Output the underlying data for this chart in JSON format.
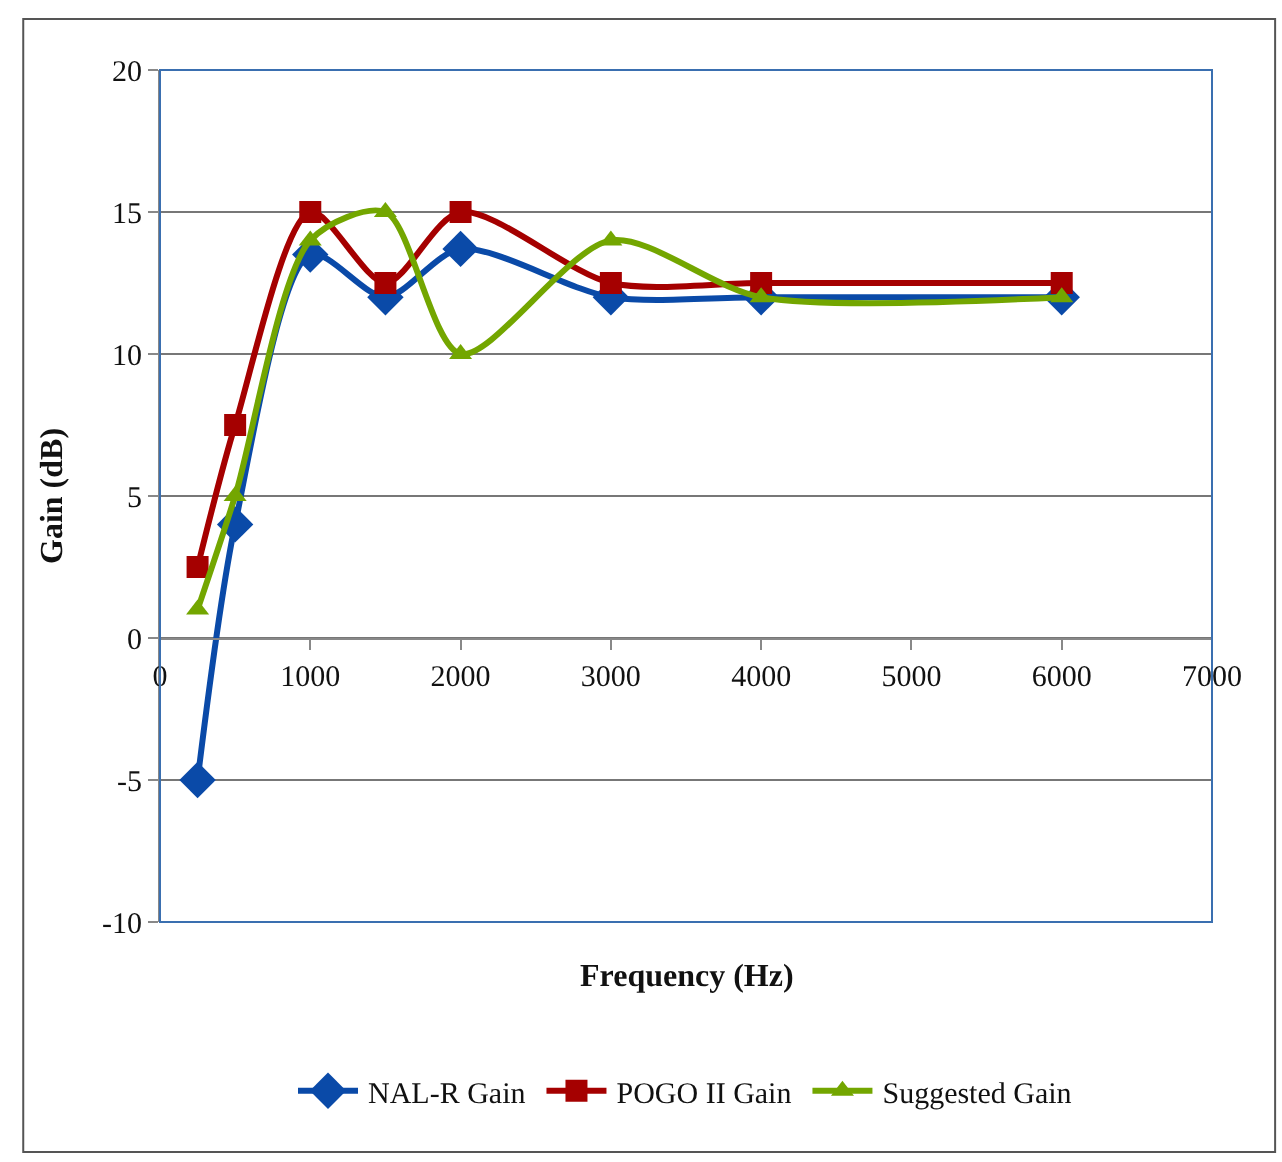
{
  "chart_data": {
    "type": "line",
    "xlabel": "Frequency (Hz)",
    "ylabel": "Gain (dB)",
    "x": [
      250,
      500,
      1000,
      1500,
      2000,
      3000,
      4000,
      6000
    ],
    "series": [
      {
        "name": "NAL-R Gain",
        "color": "#0a4aa8",
        "marker": "diamond",
        "values": [
          -5,
          4,
          13.5,
          12,
          13.7,
          12,
          12,
          12
        ]
      },
      {
        "name": "POGO II Gain",
        "color": "#a50000",
        "marker": "square",
        "values": [
          2.5,
          7.5,
          15,
          12.5,
          15,
          12.5,
          12.5,
          12.5
        ]
      },
      {
        "name": "Suggested Gain",
        "color": "#73a600",
        "marker": "triangle",
        "values": [
          1,
          5,
          14,
          15,
          10,
          14,
          12,
          12
        ]
      }
    ],
    "xlim": [
      0,
      7000
    ],
    "xticks": [
      0,
      1000,
      2000,
      3000,
      4000,
      5000,
      6000,
      7000
    ],
    "ylim": [
      -10,
      20
    ],
    "yticks": [
      -10,
      -5,
      0,
      5,
      10,
      15,
      20
    ],
    "grid": "y",
    "legend": "bottom",
    "line_style": "solid"
  }
}
